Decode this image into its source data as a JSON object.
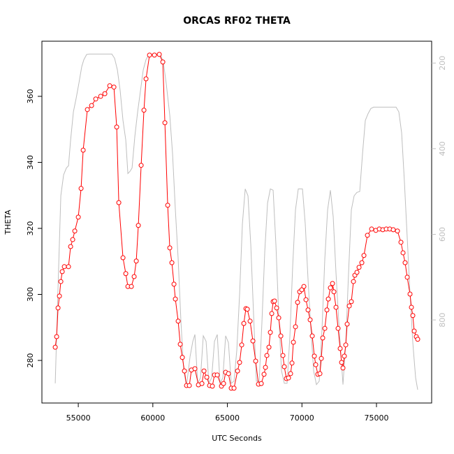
{
  "chart_data": {
    "type": "line",
    "title": "ORCAS RF02 THETA",
    "xlabel": "UTC Seconds",
    "ylabel": "THETA",
    "xlim": [
      52560,
      78700
    ],
    "ylim": [
      267.1,
      376.7
    ],
    "y2lim": [
      994,
      149
    ],
    "xticks": [
      55000,
      60000,
      65000,
      70000,
      75000
    ],
    "yticks": [
      280,
      300,
      320,
      340,
      360
    ],
    "y2ticks": [
      200,
      400,
      600,
      800
    ],
    "series": [
      {
        "color": "#ff0000",
        "marker": "circle",
        "x": [
          53454,
          53548,
          53642,
          53735,
          53829,
          53923,
          54063,
          54344,
          54485,
          54625,
          54766,
          55000,
          55187,
          55328,
          55609,
          55890,
          56171,
          56499,
          56780,
          57108,
          57389,
          57576,
          57717,
          57998,
          58185,
          58326,
          58560,
          58747,
          58888,
          59028,
          59216,
          59403,
          59543,
          59778,
          60106,
          60433,
          60668,
          60808,
          60996,
          61136,
          61277,
          61417,
          61511,
          61698,
          61839,
          61979,
          62120,
          62260,
          62448,
          62588,
          62822,
          63056,
          63291,
          63431,
          63618,
          63806,
          63993,
          64134,
          64321,
          64602,
          64743,
          64883,
          65071,
          65258,
          65445,
          65680,
          65820,
          65961,
          66101,
          66242,
          66335,
          66523,
          66710,
          66897,
          67085,
          67272,
          67459,
          67553,
          67647,
          67787,
          67881,
          67975,
          68068,
          68162,
          68303,
          68443,
          68584,
          68724,
          68818,
          68958,
          69099,
          69239,
          69333,
          69427,
          69567,
          69708,
          69848,
          69989,
          70129,
          70270,
          70410,
          70551,
          70691,
          70832,
          70926,
          71066,
          71207,
          71300,
          71394,
          71535,
          71675,
          71769,
          71909,
          72050,
          72143,
          72284,
          72424,
          72565,
          72659,
          72752,
          72846,
          72940,
          73033,
          73174,
          73314,
          73455,
          73549,
          73689,
          73830,
          74017,
          74158,
          74392,
          74673,
          74954,
          75188,
          75422,
          75656,
          75891,
          76125,
          76406,
          76640,
          76781,
          76921,
          77062,
          77249,
          77343,
          77436,
          77530,
          77671,
          77764
        ],
        "values": [
          284.0,
          287.2,
          295.9,
          299.5,
          303.9,
          306.9,
          308.4,
          308.4,
          314.5,
          316.6,
          319.2,
          323.4,
          332.1,
          343.7,
          356.0,
          357.2,
          359.2,
          360.0,
          360.8,
          363.2,
          362.8,
          350.7,
          327.8,
          311.1,
          306.3,
          302.4,
          302.4,
          305.4,
          310.1,
          320.9,
          339.1,
          355.8,
          365.3,
          372.5,
          372.5,
          372.7,
          370.4,
          352.0,
          327.0,
          314.1,
          309.6,
          303.1,
          298.6,
          291.9,
          284.9,
          280.9,
          276.8,
          272.4,
          272.4,
          277.1,
          277.5,
          272.6,
          273.0,
          276.8,
          274.9,
          272.4,
          272.2,
          275.6,
          275.6,
          272.2,
          273.0,
          276.4,
          276.0,
          271.6,
          271.6,
          276.8,
          279.4,
          284.7,
          291.2,
          295.7,
          295.5,
          291.9,
          285.9,
          279.8,
          272.8,
          273.0,
          275.8,
          277.9,
          281.5,
          284.0,
          288.5,
          294.2,
          297.8,
          298.0,
          295.9,
          292.9,
          287.4,
          281.5,
          278.1,
          274.5,
          274.7,
          276.0,
          279.2,
          285.5,
          290.2,
          297.6,
          300.8,
          301.4,
          302.4,
          298.4,
          295.3,
          292.3,
          287.4,
          281.3,
          278.7,
          275.8,
          276.0,
          280.6,
          286.8,
          289.7,
          295.3,
          298.6,
          302.0,
          303.3,
          300.8,
          296.1,
          289.7,
          283.6,
          279.4,
          277.7,
          281.3,
          284.7,
          291.0,
          296.5,
          297.8,
          303.9,
          305.8,
          306.7,
          308.2,
          309.6,
          311.8,
          317.9,
          319.8,
          319.4,
          319.8,
          319.6,
          319.8,
          319.8,
          319.6,
          319.2,
          315.8,
          312.6,
          309.6,
          305.2,
          300.1,
          296.1,
          293.6,
          288.9,
          287.2,
          286.4
        ]
      },
      {
        "color": "#bebebe",
        "axis": "y2",
        "x": [
          53454,
          53642,
          53829,
          54016,
          54204,
          54344,
          54485,
          54672,
          54859,
          55047,
          55234,
          55375,
          55562,
          55749,
          57248,
          57436,
          57623,
          57810,
          57998,
          58185,
          58326,
          58466,
          58607,
          58794,
          58981,
          59169,
          59356,
          59543,
          59731,
          60527,
          60715,
          60902,
          61136,
          61323,
          61511,
          61698,
          61885,
          62073,
          62260,
          62494,
          62682,
          62822,
          63010,
          63197,
          63384,
          63572,
          63759,
          63946,
          64134,
          64321,
          64509,
          64696,
          64883,
          65071,
          65258,
          65445,
          65633,
          65820,
          66007,
          66195,
          66382,
          66570,
          66757,
          66944,
          67132,
          67319,
          67506,
          67694,
          67881,
          68068,
          68256,
          68443,
          68631,
          68818,
          69005,
          69193,
          69380,
          69567,
          69755,
          70036,
          70223,
          70410,
          70598,
          70785,
          70972,
          71160,
          71347,
          71535,
          71722,
          71909,
          72097,
          72284,
          72471,
          72659,
          72752,
          72940,
          73127,
          73314,
          73502,
          73689,
          73877,
          74064,
          74251,
          74439,
          74626,
          74813,
          76312,
          76499,
          76687,
          76874,
          77062,
          77249,
          77436,
          77624,
          77764
        ],
        "values": [
          948,
          723,
          510,
          461,
          445,
          440,
          380,
          314,
          282,
          246,
          208,
          192,
          180,
          179,
          179,
          189,
          216,
          265,
          334,
          380,
          458,
          453,
          445,
          371,
          314,
          265,
          216,
          192,
          180,
          180,
          200,
          249,
          322,
          412,
          543,
          657,
          804,
          919,
          954,
          886,
          850,
          834,
          948,
          935,
          837,
          850,
          948,
          935,
          850,
          834,
          948,
          935,
          837,
          853,
          948,
          943,
          870,
          739,
          576,
          494,
          510,
          625,
          788,
          943,
          943,
          804,
          641,
          527,
          494,
          497,
          625,
          788,
          919,
          948,
          948,
          837,
          674,
          543,
          494,
          494,
          576,
          706,
          821,
          919,
          951,
          943,
          821,
          657,
          543,
          497,
          559,
          690,
          804,
          902,
          951,
          853,
          690,
          543,
          510,
          502,
          500,
          412,
          334,
          318,
          306,
          303,
          303,
          314,
          363,
          478,
          608,
          739,
          853,
          935,
          963
        ]
      }
    ]
  }
}
